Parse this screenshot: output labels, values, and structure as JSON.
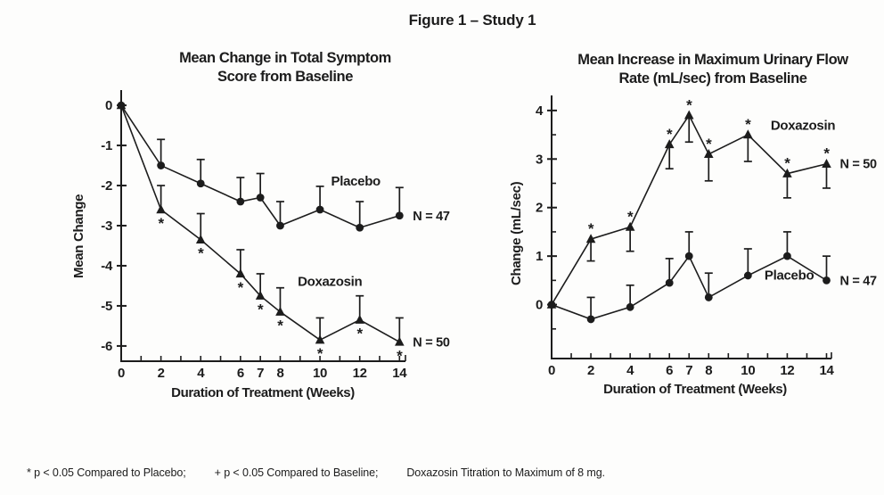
{
  "figure_title": "Figure 1 – Study 1",
  "footnote": {
    "part1": "* p < 0.05 Compared to Placebo;",
    "part2": "+ p < 0.05 Compared to Baseline;",
    "part3": "Doxazosin Titration to Maximum of 8 mg."
  },
  "chart_data": [
    {
      "type": "line",
      "title_lines": [
        "Mean Change in Total Symptom",
        "Score from Baseline"
      ],
      "xlabel": "Duration of Treatment (Weeks)",
      "ylabel": "Mean Change",
      "grid": false,
      "legend_position": "inline-labels",
      "x": [
        0,
        2,
        4,
        6,
        7,
        8,
        10,
        12,
        14
      ],
      "xlim": [
        0,
        14.3
      ],
      "ylim": [
        -6.38,
        0.38
      ],
      "yticks": [
        0,
        -1,
        -2,
        -3,
        -4,
        -5,
        -6
      ],
      "yticks_minor": [],
      "xticks_all": [
        0,
        1,
        2,
        3,
        4,
        5,
        6,
        7,
        8,
        9,
        10,
        11,
        12,
        13,
        14
      ],
      "xticks_labeled": [
        0,
        2,
        4,
        6,
        7,
        8,
        10,
        12,
        14
      ],
      "series": [
        {
          "name": "Placebo",
          "n_label": "N = 47",
          "marker": "circle",
          "values": [
            0,
            -1.5,
            -1.95,
            -2.4,
            -2.3,
            -3.0,
            -2.6,
            -3.05,
            -2.75
          ],
          "err": [
            0,
            0.65,
            0.6,
            0.6,
            0.6,
            0.6,
            0.58,
            0.65,
            0.7
          ],
          "err_dir": "up",
          "sig": null,
          "sig_side": null,
          "label_anchor": {
            "x": 11.8,
            "y": -2.0
          }
        },
        {
          "name": "Doxazosin",
          "n_label": "N = 50",
          "marker": "triangle",
          "values": [
            0,
            -2.6,
            -3.35,
            -4.2,
            -4.75,
            -5.15,
            -5.85,
            -5.35,
            -5.9
          ],
          "err": [
            0,
            0.6,
            0.65,
            0.6,
            0.55,
            0.6,
            0.55,
            0.6,
            0.6
          ],
          "err_dir": "up",
          "sig": [
            "",
            "*",
            "*",
            "*",
            "*",
            "*",
            "*",
            "*",
            "*"
          ],
          "sig_side": "below",
          "label_anchor": {
            "x": 10.5,
            "y": -4.5
          }
        }
      ]
    },
    {
      "type": "line",
      "title_lines": [
        "Mean Increase in Maximum Urinary Flow",
        "Rate (mL/sec) from Baseline"
      ],
      "xlabel": "Duration of Treatment (Weeks)",
      "ylabel": "Change (mL/sec)",
      "grid": false,
      "legend_position": "inline-labels",
      "x": [
        0,
        2,
        4,
        6,
        7,
        8,
        10,
        12,
        14
      ],
      "xlim": [
        0,
        14.25
      ],
      "ylim": [
        -1.11,
        4.31
      ],
      "yticks": [
        4,
        3,
        2,
        1,
        0
      ],
      "yticks_minor": [
        3.5,
        2.5,
        1.5,
        0.5,
        -0.5
      ],
      "xticks_all": [
        0,
        1,
        2,
        3,
        4,
        5,
        6,
        7,
        8,
        9,
        10,
        11,
        12,
        13,
        14
      ],
      "xticks_labeled": [
        0,
        2,
        4,
        6,
        7,
        8,
        10,
        12,
        14
      ],
      "series": [
        {
          "name": "Doxazosin",
          "n_label": "N = 50",
          "marker": "triangle",
          "values": [
            0,
            1.35,
            1.6,
            3.3,
            3.9,
            3.1,
            3.5,
            2.7,
            2.9
          ],
          "err": [
            0,
            0.45,
            0.5,
            0.5,
            0.55,
            0.55,
            0.55,
            0.5,
            0.5
          ],
          "err_dir": "down",
          "sig": [
            "",
            "*",
            "*",
            "*",
            "*",
            "*",
            "*",
            "*",
            "*"
          ],
          "sig_side": "above",
          "label_anchor": {
            "x": 12.8,
            "y": 3.6
          }
        },
        {
          "name": "Placebo",
          "n_label": "N = 47",
          "marker": "circle",
          "values": [
            0,
            -0.3,
            -0.05,
            0.45,
            1.0,
            0.15,
            0.6,
            1.0,
            0.5
          ],
          "err": [
            0,
            0.45,
            0.45,
            0.5,
            0.5,
            0.5,
            0.55,
            0.5,
            0.5
          ],
          "err_dir": "up",
          "sig": null,
          "sig_side": null,
          "label_anchor": {
            "x": 12.1,
            "y": 0.52
          }
        }
      ]
    }
  ]
}
